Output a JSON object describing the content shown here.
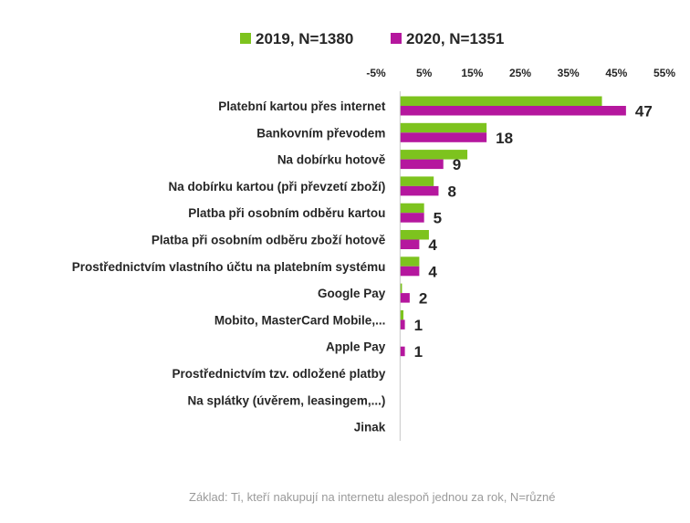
{
  "chart_data": {
    "type": "bar",
    "orientation": "horizontal",
    "categories": [
      "Platební kartou přes internet",
      "Bankovním převodem",
      "Na dobírku hotově",
      "Na dobírku kartou (při převzetí zboží)",
      "Platba při osobním odběru kartou",
      "Platba při osobním odběru zboží hotově",
      "Prostřednictvím vlastního účtu na platebním  systému",
      "Google Pay",
      "Mobito, MasterCard Mobile,...",
      "Apple Pay",
      "Prostřednictvím tzv. odložené platby",
      "Na splátky (úvěrem, leasingem,...)",
      "Jinak"
    ],
    "series": [
      {
        "name": "2019, N=1380",
        "color": "#7dc31e",
        "values": [
          42,
          18,
          14,
          7,
          5,
          6,
          4,
          0.4,
          0.7,
          0,
          0,
          0,
          0
        ]
      },
      {
        "name": "2020, N=1351",
        "color": "#b5179e",
        "values": [
          47,
          18,
          9,
          8,
          5,
          4,
          4,
          2,
          1,
          1,
          0,
          0,
          0
        ],
        "data_labels": [
          "47",
          "18",
          "9",
          "8",
          "5",
          "4",
          "4",
          "2",
          "1",
          "1",
          "",
          "",
          ""
        ]
      }
    ],
    "x_ticks": [
      "-5%",
      "5%",
      "15%",
      "25%",
      "35%",
      "45%",
      "55%"
    ],
    "xlim": [
      -5,
      55
    ],
    "grid": false,
    "legend_position": "top"
  },
  "footnote": "Základ: Ti, kteří nakupují na internetu alespoň jednou za rok, N=různé"
}
